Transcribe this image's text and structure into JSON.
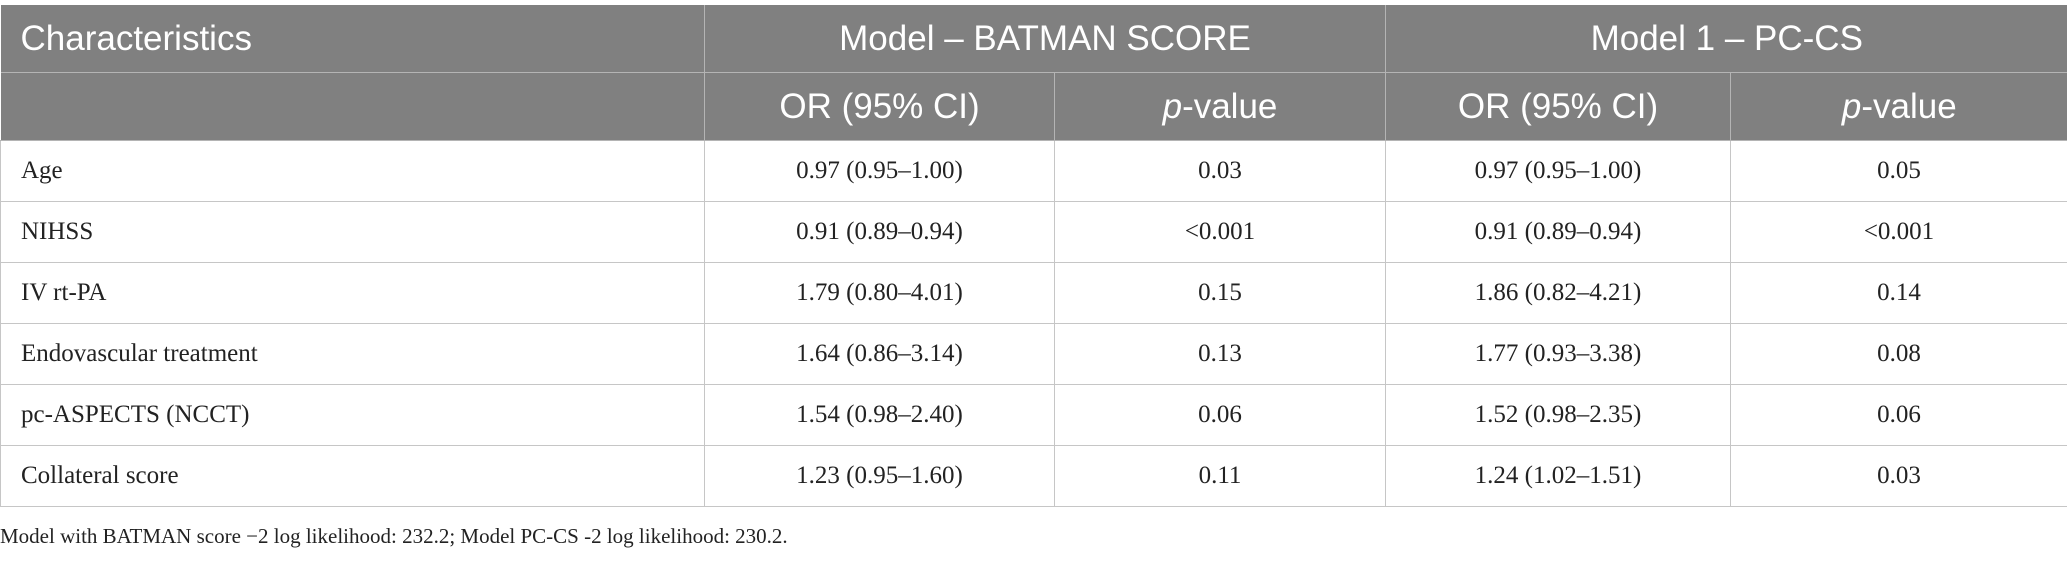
{
  "table": {
    "header_top": {
      "characteristics": "Characteristics",
      "group1": "Model – BATMAN SCORE",
      "group2": "Model 1 – PC-CS"
    },
    "header_sub": {
      "or1": "OR (95% CI)",
      "p_italic1": "p",
      "p_suffix1": "-value",
      "or2": "OR (95% CI)",
      "p_italic2": "p",
      "p_suffix2": "-value"
    },
    "rows": [
      {
        "label": "Age",
        "or1": "0.97 (0.95–1.00)",
        "p1": "0.03",
        "or2": "0.97 (0.95–1.00)",
        "p2": "0.05"
      },
      {
        "label": "NIHSS",
        "or1": "0.91 (0.89–0.94)",
        "p1": "<0.001",
        "or2": "0.91 (0.89–0.94)",
        "p2": "<0.001"
      },
      {
        "label": "IV rt-PA",
        "or1": "1.79 (0.80–4.01)",
        "p1": "0.15",
        "or2": "1.86 (0.82–4.21)",
        "p2": "0.14"
      },
      {
        "label": "Endovascular treatment",
        "or1": "1.64 (0.86–3.14)",
        "p1": "0.13",
        "or2": "1.77 (0.93–3.38)",
        "p2": "0.08"
      },
      {
        "label": "pc-ASPECTS (NCCT)",
        "or1": "1.54 (0.98–2.40)",
        "p1": "0.06",
        "or2": "1.52 (0.98–2.35)",
        "p2": "0.06"
      },
      {
        "label": "Collateral score",
        "or1": "1.23 (0.95–1.60)",
        "p1": "0.11",
        "or2": "1.24 (1.02–1.51)",
        "p2": "0.03"
      }
    ]
  },
  "footnote": "Model with BATMAN score −2 log likelihood: 232.2; Model PC-CS -2 log likelihood: 230.2.",
  "colors": {
    "header_bg": "#808080",
    "header_text": "#ffffff",
    "border": "#c6c6c6"
  }
}
